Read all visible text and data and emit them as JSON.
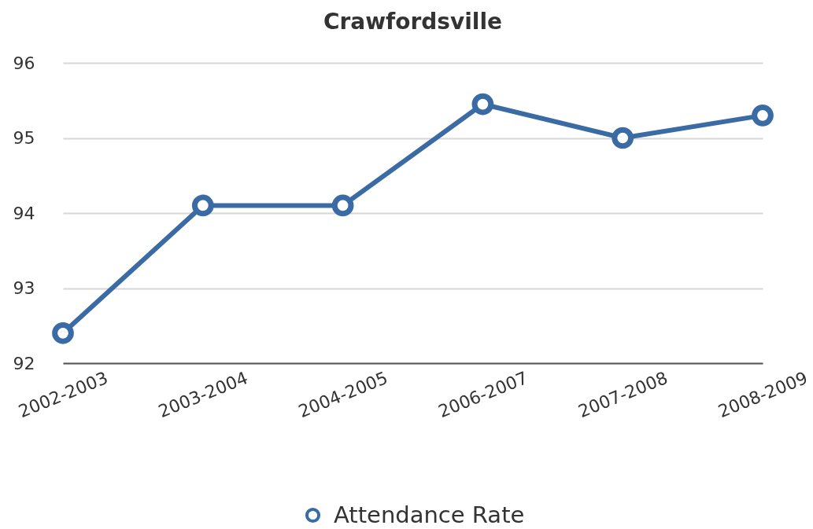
{
  "chart_data": {
    "type": "line",
    "title": "Crawfordsville",
    "categories": [
      "2002-2003",
      "2003-2004",
      "2004-2005",
      "2006-2007",
      "2007-2008",
      "2008-2009"
    ],
    "series": [
      {
        "name": "Attendance Rate",
        "color": "#3b6ba5",
        "values": [
          92.4,
          94.1,
          94.1,
          95.45,
          95.0,
          95.3
        ]
      }
    ],
    "ylim": [
      92,
      96
    ],
    "yticks": [
      92,
      93,
      94,
      95,
      96
    ],
    "grid": "y",
    "legend": "bottom",
    "marker": "circle"
  }
}
